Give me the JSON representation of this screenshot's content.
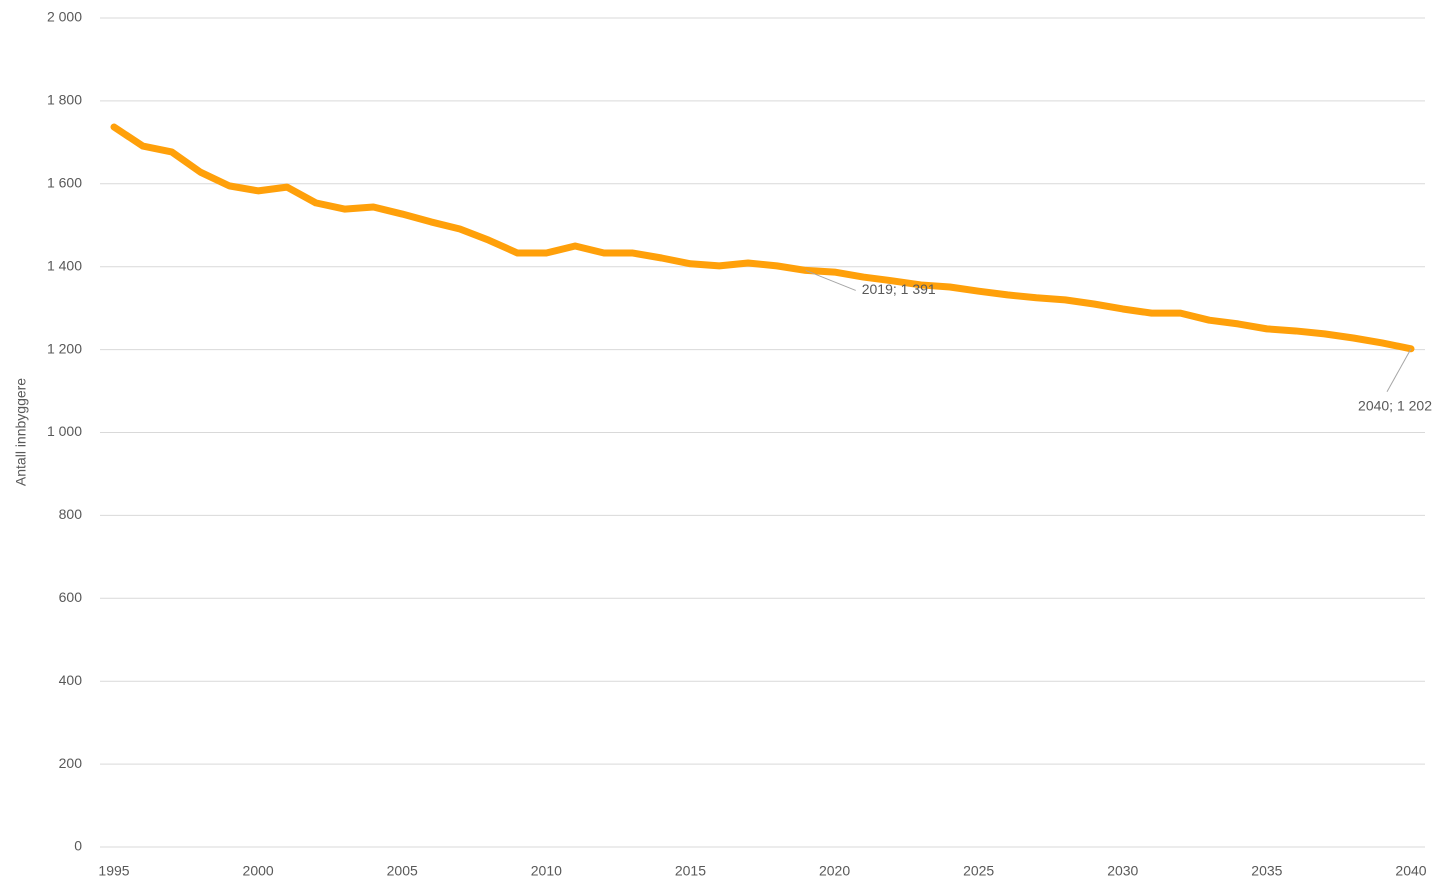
{
  "chart_data": {
    "type": "line",
    "y_label": "Antall innbyggere",
    "x": [
      1995,
      1996,
      1997,
      1998,
      1999,
      2000,
      2001,
      2002,
      2003,
      2004,
      2005,
      2006,
      2007,
      2008,
      2009,
      2010,
      2011,
      2012,
      2013,
      2014,
      2015,
      2016,
      2017,
      2018,
      2019,
      2020,
      2021,
      2022,
      2023,
      2024,
      2025,
      2026,
      2027,
      2028,
      2029,
      2030,
      2031,
      2032,
      2033,
      2034,
      2035,
      2036,
      2037,
      2038,
      2039,
      2040
    ],
    "series": [
      {
        "color": "#ffa00a",
        "values": [
          1737,
          1691,
          1677,
          1628,
          1595,
          1583,
          1592,
          1554,
          1539,
          1544,
          1527,
          1508,
          1491,
          1464,
          1433,
          1433,
          1450,
          1433,
          1433,
          1421,
          1407,
          1402,
          1409,
          1402,
          1391,
          1387,
          1375,
          1366,
          1356,
          1351,
          1341,
          1332,
          1325,
          1320,
          1310,
          1298,
          1288,
          1288,
          1271,
          1262,
          1250,
          1245,
          1238,
          1228,
          1216,
          1202
        ],
        "value_labels": [
          null,
          null,
          null,
          null,
          null,
          null,
          null,
          null,
          null,
          null,
          null,
          null,
          null,
          null,
          null,
          null,
          null,
          null,
          null,
          null,
          null,
          null,
          null,
          null,
          "2019; 1 391",
          null,
          null,
          null,
          null,
          null,
          null,
          null,
          null,
          null,
          null,
          null,
          null,
          null,
          null,
          null,
          null,
          null,
          null,
          null,
          null,
          "2040; 1 202"
        ]
      }
    ],
    "xlim": [
      1995,
      2040
    ],
    "xticks": [
      1995,
      2000,
      2005,
      2010,
      2015,
      2020,
      2025,
      2030,
      2035,
      2040
    ],
    "ylim": [
      0,
      2000
    ],
    "yticks": [
      0,
      200,
      400,
      600,
      800,
      {
        "value": 1000,
        "label": "1 000"
      },
      {
        "value": 1200,
        "label": "1 200"
      },
      {
        "value": 1400,
        "label": "1 400"
      },
      {
        "value": 1600,
        "label": "1 600"
      },
      {
        "value": 1800,
        "label": "1 800"
      },
      {
        "value": 2000,
        "label": "2 000"
      }
    ],
    "grid": true
  }
}
